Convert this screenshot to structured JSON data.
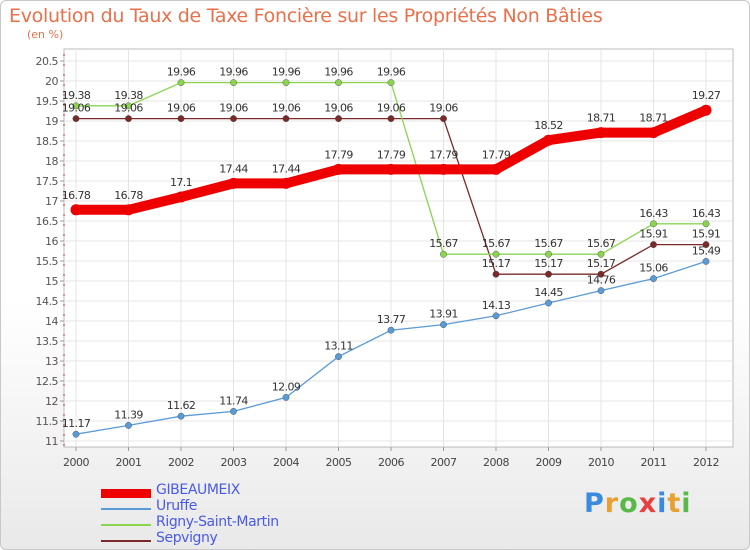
{
  "title": "Evolution du Taux de Taxe Foncière sur les Propriétés Non Bâties",
  "unit_label": "(en %)",
  "logo": {
    "text": "Proxiti",
    "letters": [
      "P",
      "r",
      "o",
      "x",
      "i",
      "t",
      "i"
    ],
    "colors": [
      "#3a8be0",
      "#e8a030",
      "#58b848",
      "#e84040",
      "#3a8be0",
      "#e8a030",
      "#58b848"
    ]
  },
  "chart_data": {
    "type": "line",
    "title": "Evolution du Taux de Taxe Foncière sur les Propriétés Non Bâties",
    "ylabel": "(en %)",
    "xlabel": "",
    "ylim": [
      11,
      20.5
    ],
    "y_ticks": [
      "11",
      "11.5",
      "12",
      "12.5",
      "13",
      "13.5",
      "14",
      "14.5",
      "15",
      "15.5",
      "16",
      "16.5",
      "17",
      "17.5",
      "18",
      "18.5",
      "19",
      "19.5",
      "20",
      "20.5"
    ],
    "x": [
      "2000",
      "2001",
      "2002",
      "2003",
      "2004",
      "2005",
      "2006",
      "2007",
      "2008",
      "2009",
      "2010",
      "2011",
      "2012"
    ],
    "series": [
      {
        "name": "GIBEAUMEIX",
        "color": "#ee0000",
        "width": "thick",
        "values": [
          16.78,
          16.78,
          17.1,
          17.44,
          17.44,
          17.79,
          17.79,
          17.79,
          17.79,
          18.52,
          18.71,
          18.71,
          19.27
        ],
        "labels": [
          "16.78",
          "16.78",
          "17.1",
          "17.44",
          "17.44",
          "17.79",
          "17.79",
          "17.79",
          "17.79",
          "18.52",
          "18.71",
          "18.71",
          "19.27"
        ]
      },
      {
        "name": "Uruffe",
        "color": "#5b9bd5",
        "width": "thin",
        "values": [
          11.17,
          11.39,
          11.62,
          11.74,
          12.09,
          13.11,
          13.77,
          13.91,
          14.13,
          14.45,
          14.76,
          15.06,
          15.49
        ],
        "labels": [
          "11.17",
          "11.39",
          "11.62",
          "11.74",
          "12.09",
          "13.11",
          "13.77",
          "13.91",
          "14.13",
          "14.45",
          "14.76",
          "15.06",
          "15.49"
        ]
      },
      {
        "name": "Rigny-Saint-Martin",
        "color": "#8bd450",
        "width": "thin",
        "values": [
          19.38,
          19.38,
          19.96,
          19.96,
          19.96,
          19.96,
          19.96,
          15.67,
          15.67,
          15.67,
          15.67,
          16.43,
          16.43
        ],
        "labels": [
          "19.38",
          "19.38",
          "19.96",
          "19.96",
          "19.96",
          "19.96",
          "19.96",
          "15.67",
          "15.67",
          "15.67",
          "15.67",
          "16.43",
          "16.43"
        ]
      },
      {
        "name": "Sepvigny",
        "color": "#7b2a2a",
        "width": "thin",
        "values": [
          19.06,
          19.06,
          19.06,
          19.06,
          19.06,
          19.06,
          19.06,
          19.06,
          15.17,
          15.17,
          15.17,
          15.91,
          15.91
        ],
        "labels": [
          "19.06",
          "19.06",
          "19.06",
          "19.06",
          "19.06",
          "19.06",
          "19.06",
          "19.06",
          "15.17",
          "15.17",
          "15.17",
          "15.91",
          "15.91"
        ]
      }
    ],
    "legend_position": "bottom-left",
    "grid": true
  }
}
